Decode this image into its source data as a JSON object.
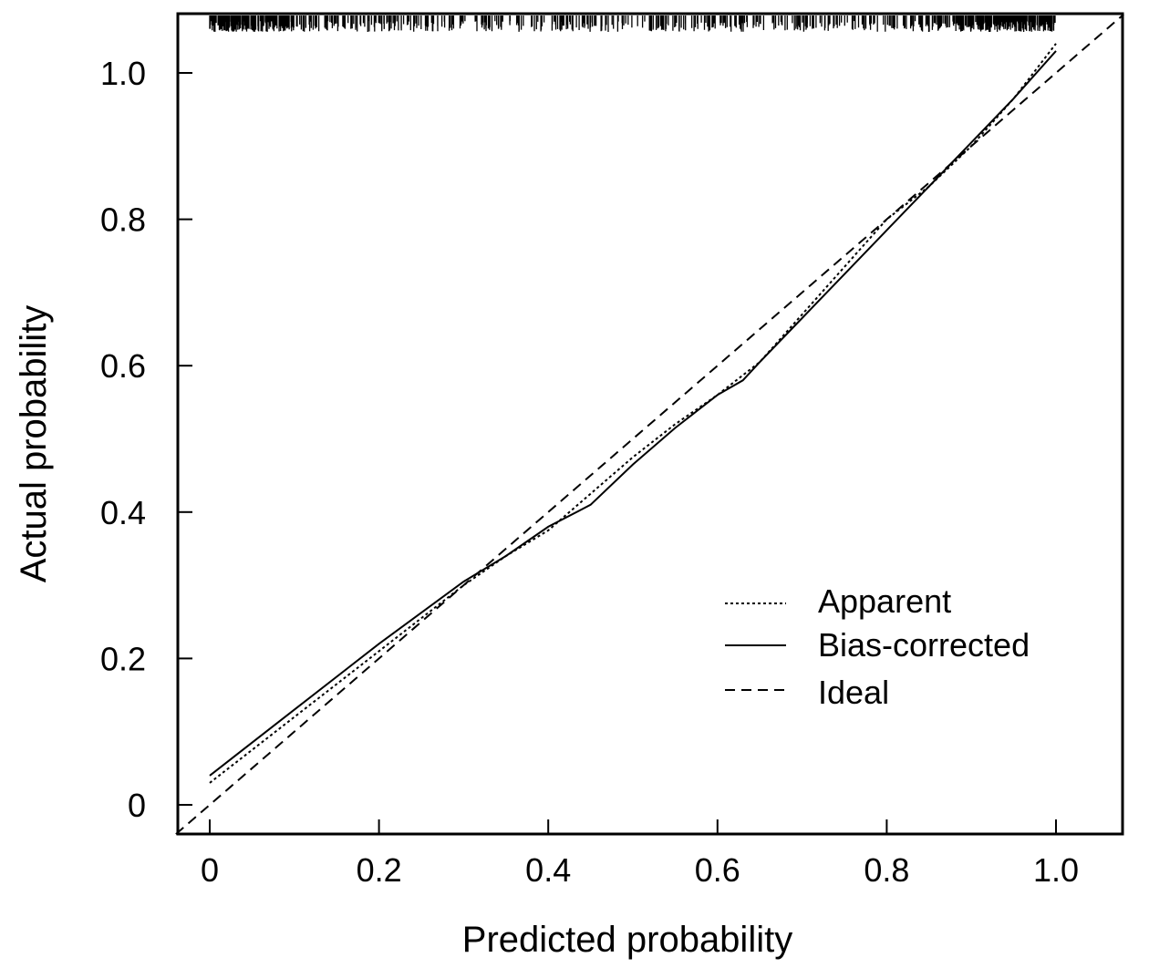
{
  "chart_data": {
    "type": "line",
    "title": "",
    "xlabel": "Predicted probability",
    "ylabel": "Actual probability",
    "xlim": [
      -0.04,
      1.08
    ],
    "ylim": [
      -0.04,
      1.08
    ],
    "x_ticks": [
      0,
      0.2,
      0.4,
      0.6,
      0.8,
      1.0
    ],
    "x_tick_labels": [
      "0",
      "0.2",
      "0.4",
      "0.6",
      "0.8",
      "1.0"
    ],
    "y_ticks": [
      0,
      0.2,
      0.4,
      0.6,
      0.8,
      1.0
    ],
    "y_tick_labels": [
      "0",
      "0.2",
      "0.4",
      "0.6",
      "0.8",
      "1.0"
    ],
    "grid": false,
    "legend_position": "lower-right",
    "series": [
      {
        "name": "Apparent",
        "style": "dotted",
        "x": [
          0.0,
          0.1,
          0.2,
          0.3,
          0.35,
          0.4,
          0.45,
          0.5,
          0.55,
          0.6,
          0.65,
          0.7,
          0.75,
          0.8,
          0.85,
          0.9,
          0.95,
          1.0
        ],
        "y": [
          0.03,
          0.12,
          0.21,
          0.3,
          0.34,
          0.375,
          0.425,
          0.475,
          0.52,
          0.56,
          0.605,
          0.67,
          0.735,
          0.8,
          0.845,
          0.9,
          0.965,
          1.04
        ]
      },
      {
        "name": "Bias-corrected",
        "style": "solid",
        "x": [
          0.0,
          0.1,
          0.2,
          0.3,
          0.35,
          0.4,
          0.45,
          0.5,
          0.55,
          0.6,
          0.63,
          0.65,
          0.7,
          0.75,
          0.8,
          0.85,
          0.9,
          0.95,
          1.0
        ],
        "y": [
          0.04,
          0.13,
          0.22,
          0.305,
          0.34,
          0.38,
          0.41,
          0.465,
          0.515,
          0.56,
          0.58,
          0.605,
          0.665,
          0.725,
          0.785,
          0.845,
          0.905,
          0.965,
          1.03
        ]
      },
      {
        "name": "Ideal",
        "style": "dashed",
        "x": [
          -0.04,
          1.08
        ],
        "y": [
          -0.04,
          1.08
        ]
      }
    ],
    "rug_ticks_visible": true
  },
  "colors": {
    "line": "#000000",
    "background": "#ffffff"
  }
}
